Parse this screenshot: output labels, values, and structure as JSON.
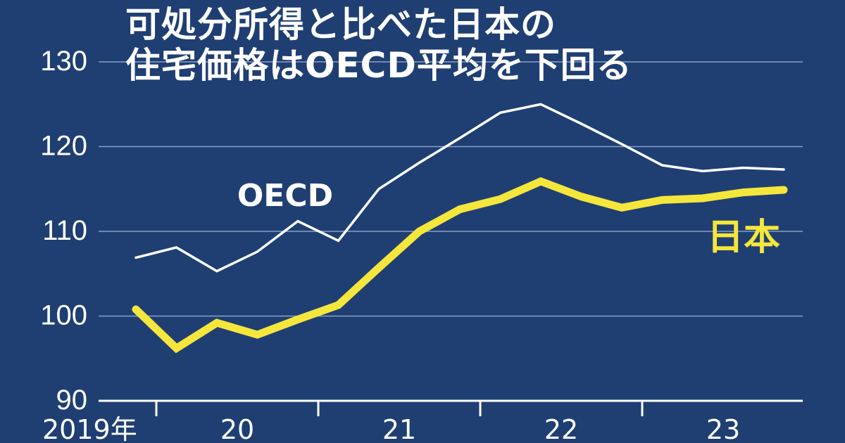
{
  "chart_data": {
    "type": "line",
    "title_lines": [
      "可処分所得と比べた日本の",
      "住宅価格はOECD平均を下回る"
    ],
    "xlabel": "",
    "ylabel": "",
    "ylim": [
      90,
      130
    ],
    "yticks": [
      90,
      100,
      110,
      120,
      130
    ],
    "x_tick_labels": [
      "2019年",
      "20",
      "21",
      "22",
      "23"
    ],
    "grid": "horizontal",
    "series": [
      {
        "name": "OECD",
        "color": "#ffffff",
        "x": [
          "2019Q4",
          "2020Q1",
          "2020Q2",
          "2020Q3",
          "2020Q4",
          "2021Q1",
          "2021Q2",
          "2021Q3",
          "2021Q4",
          "2022Q1",
          "2022Q2",
          "2022Q3",
          "2022Q4",
          "2023Q1",
          "2023Q2",
          "2023Q3",
          "2023Q4"
        ],
        "values": [
          106.9,
          108.1,
          105.3,
          107.6,
          111.2,
          108.9,
          115.0,
          118.1,
          121.0,
          124.0,
          125.0,
          122.7,
          120.3,
          117.8,
          117.1,
          117.5,
          117.3
        ]
      },
      {
        "name": "日本",
        "color": "#f5e63c",
        "x": [
          "2019Q4",
          "2020Q1",
          "2020Q2",
          "2020Q3",
          "2020Q4",
          "2021Q1",
          "2021Q2",
          "2021Q3",
          "2021Q4",
          "2022Q1",
          "2022Q2",
          "2022Q3",
          "2022Q4",
          "2023Q1",
          "2023Q2",
          "2023Q3",
          "2023Q4"
        ],
        "values": [
          100.8,
          96.2,
          99.2,
          97.8,
          99.6,
          101.3,
          105.7,
          110.0,
          112.6,
          113.8,
          115.9,
          114.1,
          112.8,
          113.7,
          113.9,
          114.6,
          114.9
        ]
      }
    ]
  }
}
